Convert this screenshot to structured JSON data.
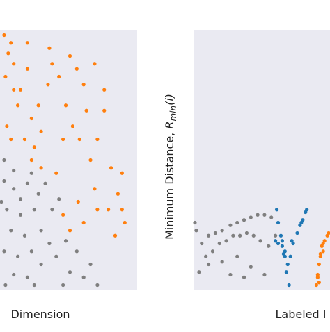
{
  "chart_data": [
    {
      "type": "scatter",
      "xlabel": "Dimension",
      "background": "#eaeaf2",
      "xlim": [
        0,
        100
      ],
      "ylim": [
        0,
        100
      ],
      "series": [
        {
          "color": "#ff7f0e",
          "x": [
            3,
            8,
            6,
            10,
            4,
            15,
            13,
            5,
            20,
            23,
            25,
            30,
            36,
            38,
            35,
            43,
            48,
            51,
            56,
            61,
            53,
            63,
            71,
            76,
            66,
            58,
            81,
            89,
            86,
            79,
            91,
            61,
            51,
            46,
            84,
            69,
            30,
            23,
            18,
            8,
            41,
            28,
            69,
            46,
            76,
            10,
            20,
            71,
            57,
            89
          ],
          "y": [
            98,
            95,
            91,
            87,
            82,
            77,
            71,
            63,
            85,
            66,
            55,
            61,
            93,
            87,
            79,
            82,
            71,
            90,
            85,
            79,
            63,
            69,
            58,
            69,
            50,
            58,
            47,
            45,
            37,
            31,
            26,
            26,
            23,
            29,
            21,
            39,
            47,
            50,
            58,
            58,
            45,
            71,
            87,
            58,
            77,
            77,
            95,
            31,
            34,
            31
          ]
        },
        {
          "color": "#7f7f7f",
          "x": [
            3,
            10,
            20,
            28,
            5,
            15,
            25,
            8,
            18,
            30,
            3,
            13,
            23,
            36,
            10,
            20,
            30,
            41,
            51,
            46,
            61,
            56,
            66,
            38,
            43,
            33,
            1,
            4,
            25,
            71,
            15,
            48,
            3,
            10,
            23
          ],
          "y": [
            42,
            39,
            41,
            37,
            31,
            29,
            31,
            23,
            21,
            23,
            15,
            13,
            15,
            18,
            6,
            5,
            10,
            13,
            7,
            2,
            5,
            15,
            10,
            31,
            35,
            41,
            34,
            2,
            2,
            2,
            35,
            19,
            50,
            46,
            45
          ]
        }
      ]
    },
    {
      "type": "scatter",
      "xlabel": "Labeled I",
      "background": "#eaeaf2",
      "ylabel": {
        "text": "Minimum Distance, ",
        "symbol": "R",
        "subscript": "min",
        "suffix": "(i)"
      },
      "xlim": [
        0,
        100
      ],
      "ylim": [
        0,
        100
      ],
      "series": [
        {
          "color": "#7f7f7f",
          "x": [
            2,
            6,
            11,
            16,
            21,
            27,
            32,
            37,
            42,
            47,
            52,
            57,
            9,
            14,
            19,
            24,
            29,
            34,
            39,
            44,
            49,
            55,
            11,
            21,
            32,
            42,
            52,
            37,
            27,
            4,
            60,
            1
          ],
          "y": [
            23,
            18,
            21,
            22,
            23,
            25,
            26,
            27,
            28,
            29,
            29,
            28,
            13,
            15,
            18,
            19,
            21,
            21,
            22,
            21,
            19,
            17,
            10,
            11,
            13,
            9,
            6,
            5,
            6,
            7,
            21,
            26
          ]
        },
        {
          "color": "#1f77b4",
          "x": [
            61,
            62,
            64,
            65,
            67,
            68,
            70,
            65,
            62,
            67,
            71,
            73,
            76,
            78,
            80,
            82,
            83,
            79,
            72,
            69,
            60,
            66
          ],
          "y": [
            31,
            26,
            21,
            17,
            13,
            7,
            2,
            19,
            18,
            15,
            13,
            18,
            22,
            25,
            27,
            30,
            31,
            26,
            19,
            10,
            19,
            14
          ]
        },
        {
          "color": "#ff7f0e",
          "x": [
            90,
            91,
            92,
            93,
            94,
            95,
            96,
            98,
            99,
            91,
            93,
            95,
            92
          ],
          "y": [
            2,
            6,
            10,
            14,
            17,
            18,
            19,
            21,
            22,
            5,
            13,
            15,
            3
          ]
        }
      ]
    }
  ]
}
